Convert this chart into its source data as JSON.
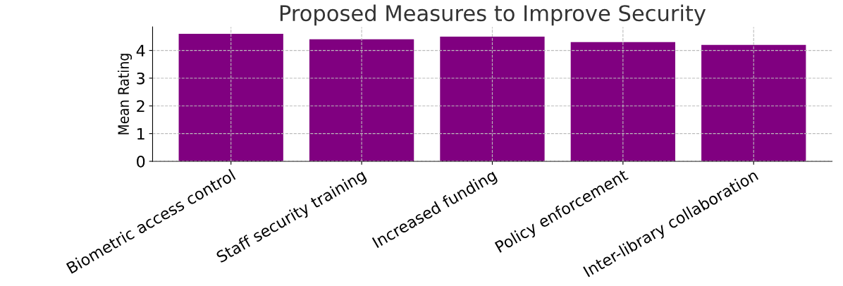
{
  "chart_data": {
    "type": "bar",
    "title": "Proposed Measures to Improve Security",
    "ylabel": "Mean Rating",
    "categories": [
      "Biometric access control",
      "Staff security training",
      "Increased funding",
      "Policy enforcement",
      "Inter-library collaboration"
    ],
    "values": [
      4.6,
      4.4,
      4.5,
      4.3,
      4.2
    ],
    "color": "#800080",
    "ylim": [
      0,
      4.85
    ],
    "yticks": [
      0,
      1,
      2,
      3,
      4
    ],
    "grid": true
  }
}
